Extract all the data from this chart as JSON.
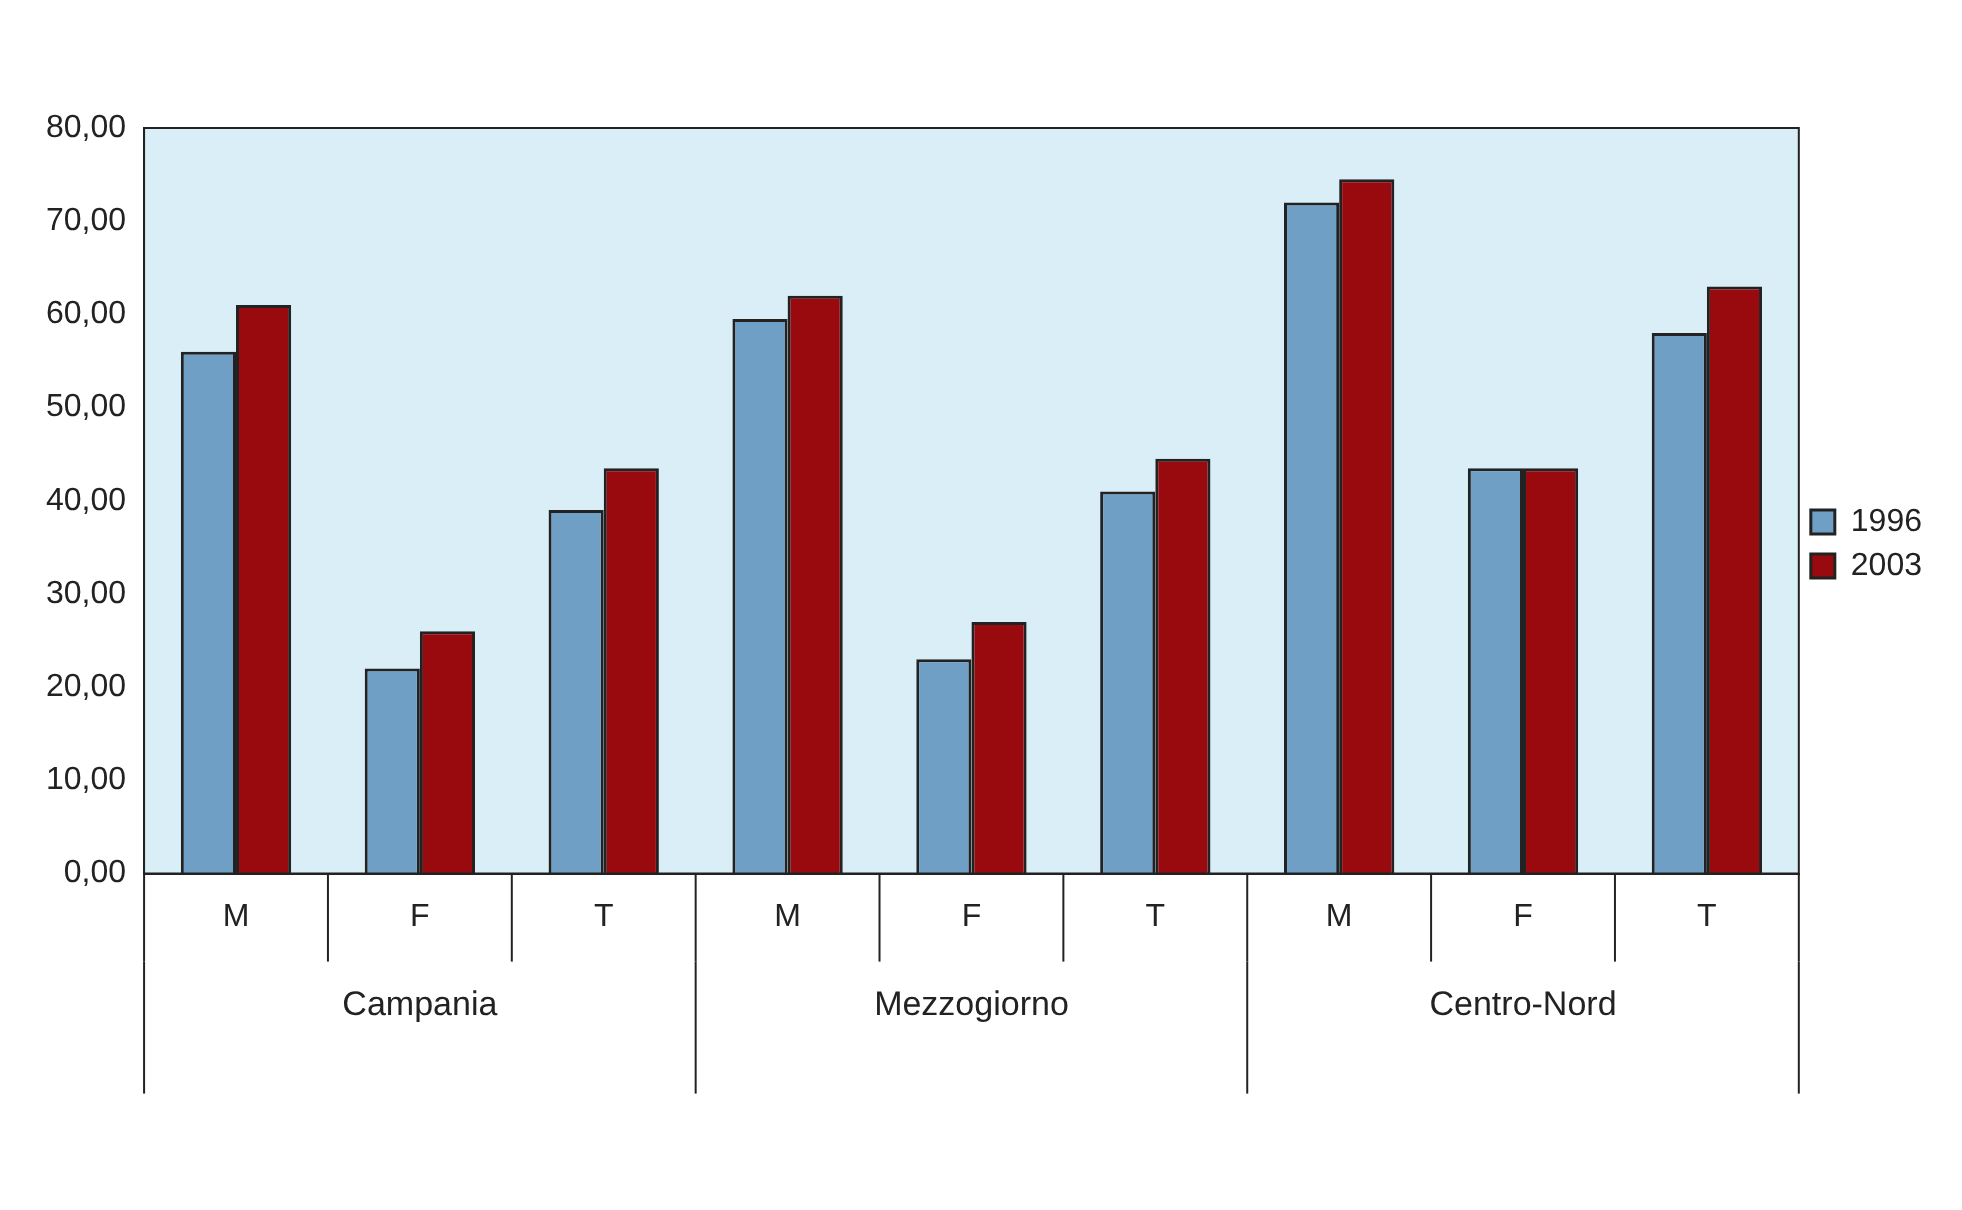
{
  "chart_data": {
    "type": "bar",
    "categories": [
      "M",
      "F",
      "T",
      "M",
      "F",
      "T",
      "M",
      "F",
      "T"
    ],
    "series": [
      {
        "name": "1996",
        "color": "#6f9fc4",
        "values": [
          56,
          22,
          39,
          59.5,
          23,
          41,
          72,
          43.5,
          58
        ]
      },
      {
        "name": "2003",
        "color": "#990a0f",
        "values": [
          61,
          26,
          43.5,
          62,
          27,
          44.5,
          74.5,
          43.5,
          63
        ]
      }
    ],
    "ylim": [
      0,
      80
    ],
    "yticks": [
      {
        "value": 0,
        "label": "0,00"
      },
      {
        "value": 10,
        "label": "10,00"
      },
      {
        "value": 20,
        "label": "20,00"
      },
      {
        "value": 30,
        "label": "30,00"
      },
      {
        "value": 40,
        "label": "40,00"
      },
      {
        "value": 50,
        "label": "50,00"
      },
      {
        "value": 60,
        "label": "60,00"
      },
      {
        "value": 70,
        "label": "70,00"
      },
      {
        "value": 80,
        "label": "80,00"
      }
    ],
    "annotations": [
      "Campania",
      "Mezzogiorno",
      "Centro-Nord"
    ],
    "grid": false,
    "legend": "right"
  }
}
